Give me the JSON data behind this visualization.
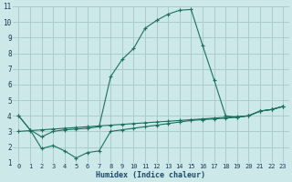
{
  "xlabel": "Humidex (Indice chaleur)",
  "bg_color": "#cce8e8",
  "grid_color": "#aacccc",
  "line_color": "#1a7060",
  "xlim": [
    -0.5,
    23.5
  ],
  "ylim": [
    1,
    11
  ],
  "xticks": [
    0,
    1,
    2,
    3,
    4,
    5,
    6,
    7,
    8,
    9,
    10,
    11,
    12,
    13,
    14,
    15,
    16,
    17,
    18,
    19,
    20,
    21,
    22,
    23
  ],
  "yticks": [
    1,
    2,
    3,
    4,
    5,
    6,
    7,
    8,
    9,
    10,
    11
  ],
  "line_peak_x": [
    0,
    1,
    2,
    3,
    4,
    5,
    6,
    7,
    8,
    9,
    10,
    11,
    12,
    13,
    14,
    15,
    16,
    17,
    18,
    19,
    20,
    21,
    22,
    23
  ],
  "line_peak_y": [
    4.0,
    3.1,
    2.65,
    3.0,
    3.1,
    3.15,
    3.2,
    3.3,
    6.5,
    7.6,
    8.3,
    9.6,
    10.1,
    10.5,
    10.75,
    10.8,
    8.5,
    6.3,
    4.0,
    3.9,
    4.0,
    4.3,
    4.4,
    4.6
  ],
  "line_dip_x": [
    0,
    1,
    2,
    3,
    4,
    5,
    6,
    7,
    8,
    9,
    10,
    11,
    12,
    13,
    14,
    15,
    16,
    17,
    18,
    19,
    20,
    21,
    22,
    23
  ],
  "line_dip_y": [
    4.0,
    3.1,
    1.9,
    2.1,
    1.75,
    1.3,
    1.65,
    1.75,
    3.0,
    3.1,
    3.2,
    3.3,
    3.4,
    3.5,
    3.6,
    3.7,
    3.75,
    3.8,
    3.85,
    3.9,
    4.0,
    4.3,
    4.4,
    4.6
  ],
  "line_diag_x": [
    0,
    1,
    2,
    3,
    4,
    5,
    6,
    7,
    8,
    9,
    10,
    11,
    12,
    13,
    14,
    15,
    16,
    17,
    18,
    19,
    20,
    21,
    22,
    23
  ],
  "line_diag_y": [
    3.0,
    3.05,
    3.1,
    3.15,
    3.2,
    3.25,
    3.3,
    3.35,
    3.4,
    3.45,
    3.5,
    3.55,
    3.6,
    3.65,
    3.7,
    3.75,
    3.8,
    3.85,
    3.9,
    3.95,
    4.0,
    4.3,
    4.4,
    4.6
  ]
}
